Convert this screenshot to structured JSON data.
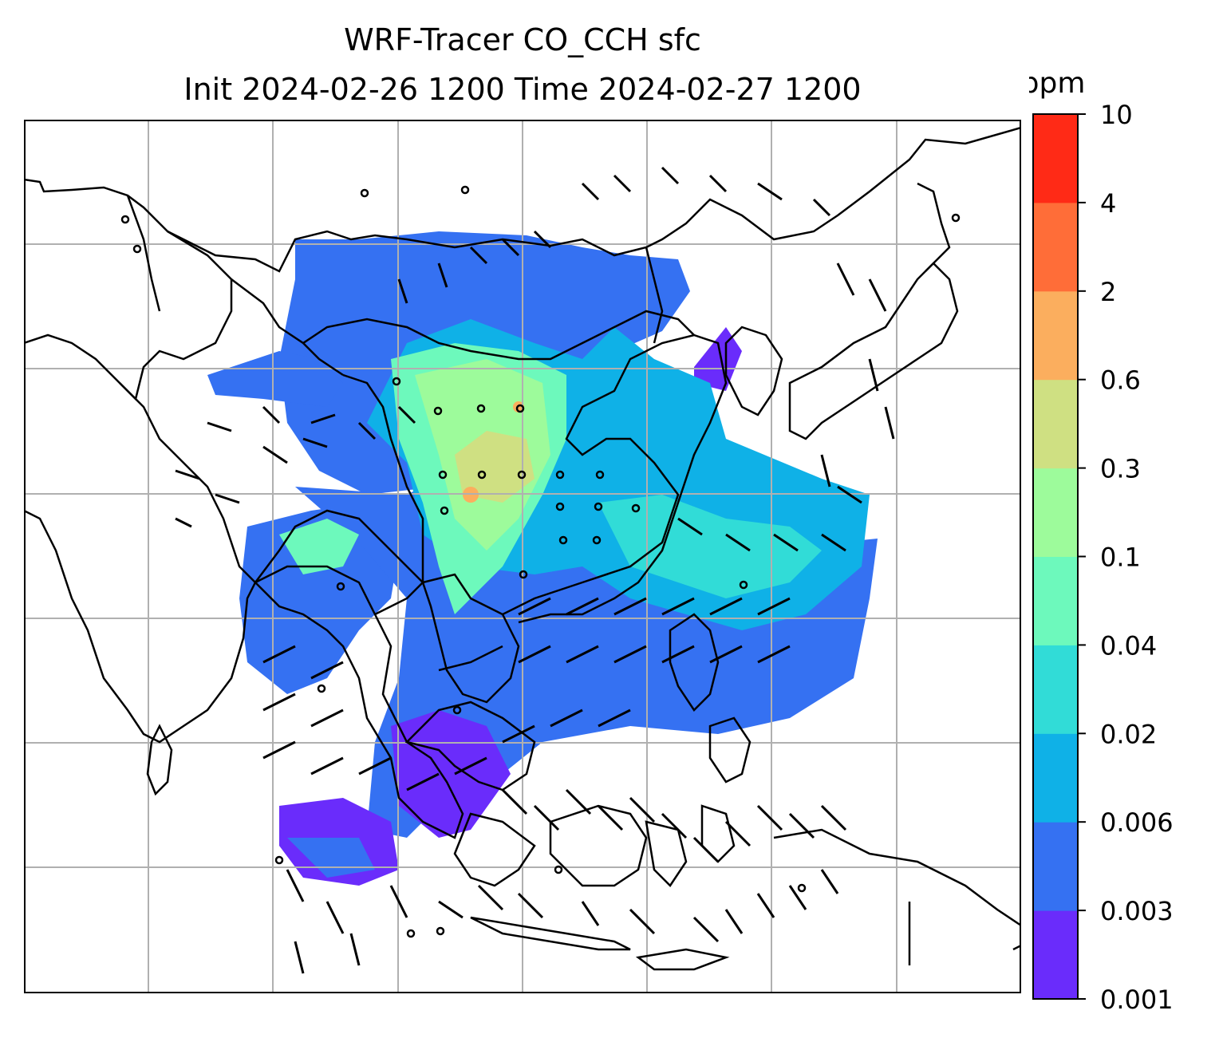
{
  "title": {
    "line1": "WRF-Tracer CO_CCH sfc",
    "line2": "Init 2024-02-26 1200 Time 2024-02-27 1200"
  },
  "colorbar": {
    "unit": "ppm",
    "levels": [
      "0.001",
      "0.003",
      "0.006",
      "0.02",
      "0.04",
      "0.1",
      "0.3",
      "0.6",
      "2",
      "4",
      "10"
    ],
    "colors": [
      "#6a2cfb",
      "#3571f2",
      "#0fb1e7",
      "#31dcd7",
      "#6df9bc",
      "#9dfb9b",
      "#cfe082",
      "#fbae5e",
      "#ff6d38",
      "#ff2a16"
    ]
  },
  "map": {
    "projection": "PlateCarree",
    "lon_range": [
      65,
      145
    ],
    "lat_range": [
      -20,
      50
    ],
    "gridlines": true,
    "features": [
      "coastlines",
      "country borders",
      "CO tracer shading",
      "wind barbs"
    ]
  }
}
